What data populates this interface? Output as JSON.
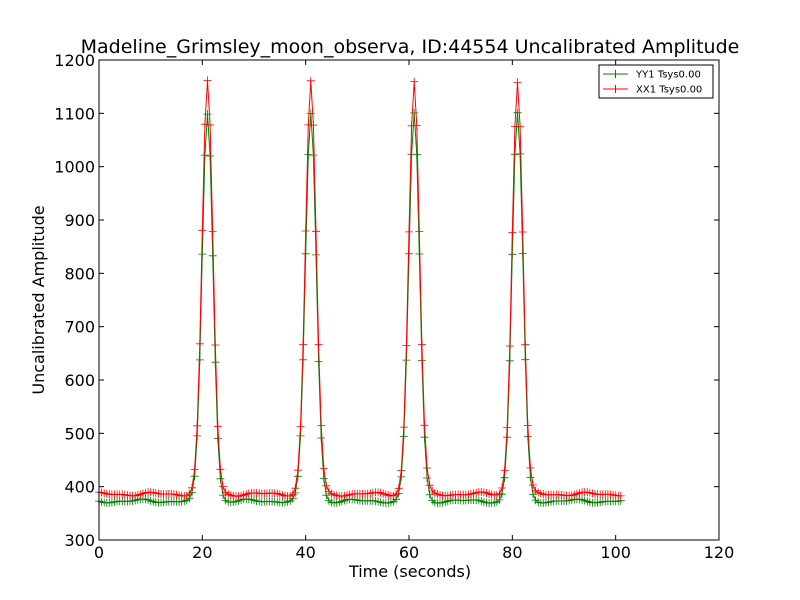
{
  "chart_data": {
    "type": "line",
    "title": "Madeline_Grimsley_moon_observa, ID:44554 Uncalibrated Amplitude",
    "xlabel": "Time (seconds)",
    "ylabel": "Uncalibrated Amplitude",
    "xlim": [
      0,
      120
    ],
    "ylim": [
      300,
      1200
    ],
    "xticks": [
      0,
      20,
      40,
      60,
      80,
      100,
      120
    ],
    "yticks": [
      300,
      400,
      500,
      600,
      700,
      800,
      900,
      1000,
      1100,
      1200
    ],
    "grid": false,
    "legend_position": "top-right",
    "sample_step_seconds": 0.5,
    "x_range": [
      0,
      101
    ],
    "peak_times": [
      21,
      41,
      61,
      81
    ],
    "series": [
      {
        "name": "YY1 Tsys0.00",
        "color": "#008000",
        "baseline": 373,
        "peak": 1100,
        "marker": "+"
      },
      {
        "name": "XX1 Tsys0.00",
        "color": "#ff0000",
        "baseline": 386,
        "peak": 1160,
        "marker": "+"
      }
    ]
  }
}
